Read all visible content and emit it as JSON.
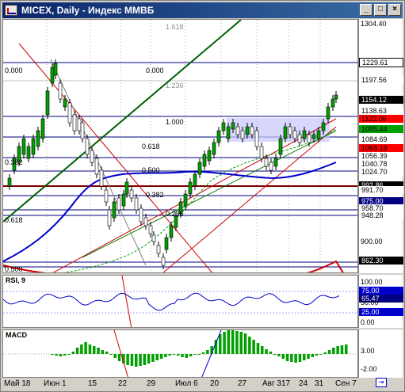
{
  "window": {
    "title": "MICEX, Daily - Индекс ММВБ",
    "buttons": [
      "_",
      "□",
      "×"
    ]
  },
  "price_panel": {
    "axis_labels": [
      "1304.40",
      "1229.61",
      "1197.56",
      "900.00"
    ],
    "price_boxes": [
      {
        "text": "1154.12",
        "bg": "#000000",
        "fg": "#ffffff"
      },
      {
        "text": "1138.63",
        "bg": "#ffffff",
        "fg": "#000000"
      },
      {
        "text": "1122.06",
        "bg": "#ff0000",
        "fg": "#000000"
      },
      {
        "text": "1095.44",
        "bg": "#00a000",
        "fg": "#000000"
      },
      {
        "text": "1084.69",
        "bg": "#ffffff",
        "fg": "#000000"
      },
      {
        "text": "1068.18",
        "bg": "#ff0000",
        "fg": "#000000"
      },
      {
        "text": "1056.39",
        "bg": "#ffffff",
        "fg": "#000000"
      },
      {
        "text": "1040.78",
        "bg": "#ffffff",
        "fg": "#000000"
      },
      {
        "text": "1024.70",
        "bg": "#ffffff",
        "fg": "#000000"
      },
      {
        "text": "992.86",
        "bg": "#000000",
        "fg": "#ffffff"
      },
      {
        "text": "991.70",
        "bg": "#ffffff",
        "fg": "#000000"
      },
      {
        "text": "975.00",
        "bg": "#000080",
        "fg": "#ffffff"
      },
      {
        "text": "958.70",
        "bg": "#ffffff",
        "fg": "#000000"
      },
      {
        "text": "948.28",
        "bg": "#ffffff",
        "fg": "#000000"
      },
      {
        "text": "862.30",
        "bg": "#000000",
        "fg": "#ffffff"
      }
    ],
    "fib_labels": [
      "1.618",
      "1.236",
      "1.000",
      "0.618",
      "0.500",
      "0.382",
      "0.236",
      "0.000"
    ],
    "fib_labels_left": [
      "0.000",
      "0.382",
      "0.618",
      "0.500"
    ]
  },
  "rsi_panel": {
    "label": "RSI, 9",
    "axis": [
      "100.00",
      "75.00",
      "50.00",
      "25.00",
      "0.00"
    ],
    "current": "65.47"
  },
  "macd_panel": {
    "label": "MACD",
    "axis": [
      "3.00",
      "-2.00"
    ]
  },
  "x_axis": [
    "Май 18",
    "Июн 1",
    "15",
    "22",
    "29",
    "Июл 6",
    "20",
    "27",
    "Авг 3",
    "17",
    "24",
    "31",
    "Сен 7"
  ],
  "colors": {
    "rsi_line": "#0000cc",
    "macd_hist": "#00a000",
    "ma": "#0000cc",
    "uptrend": "#006000",
    "downtrend": "#cc0000"
  }
}
